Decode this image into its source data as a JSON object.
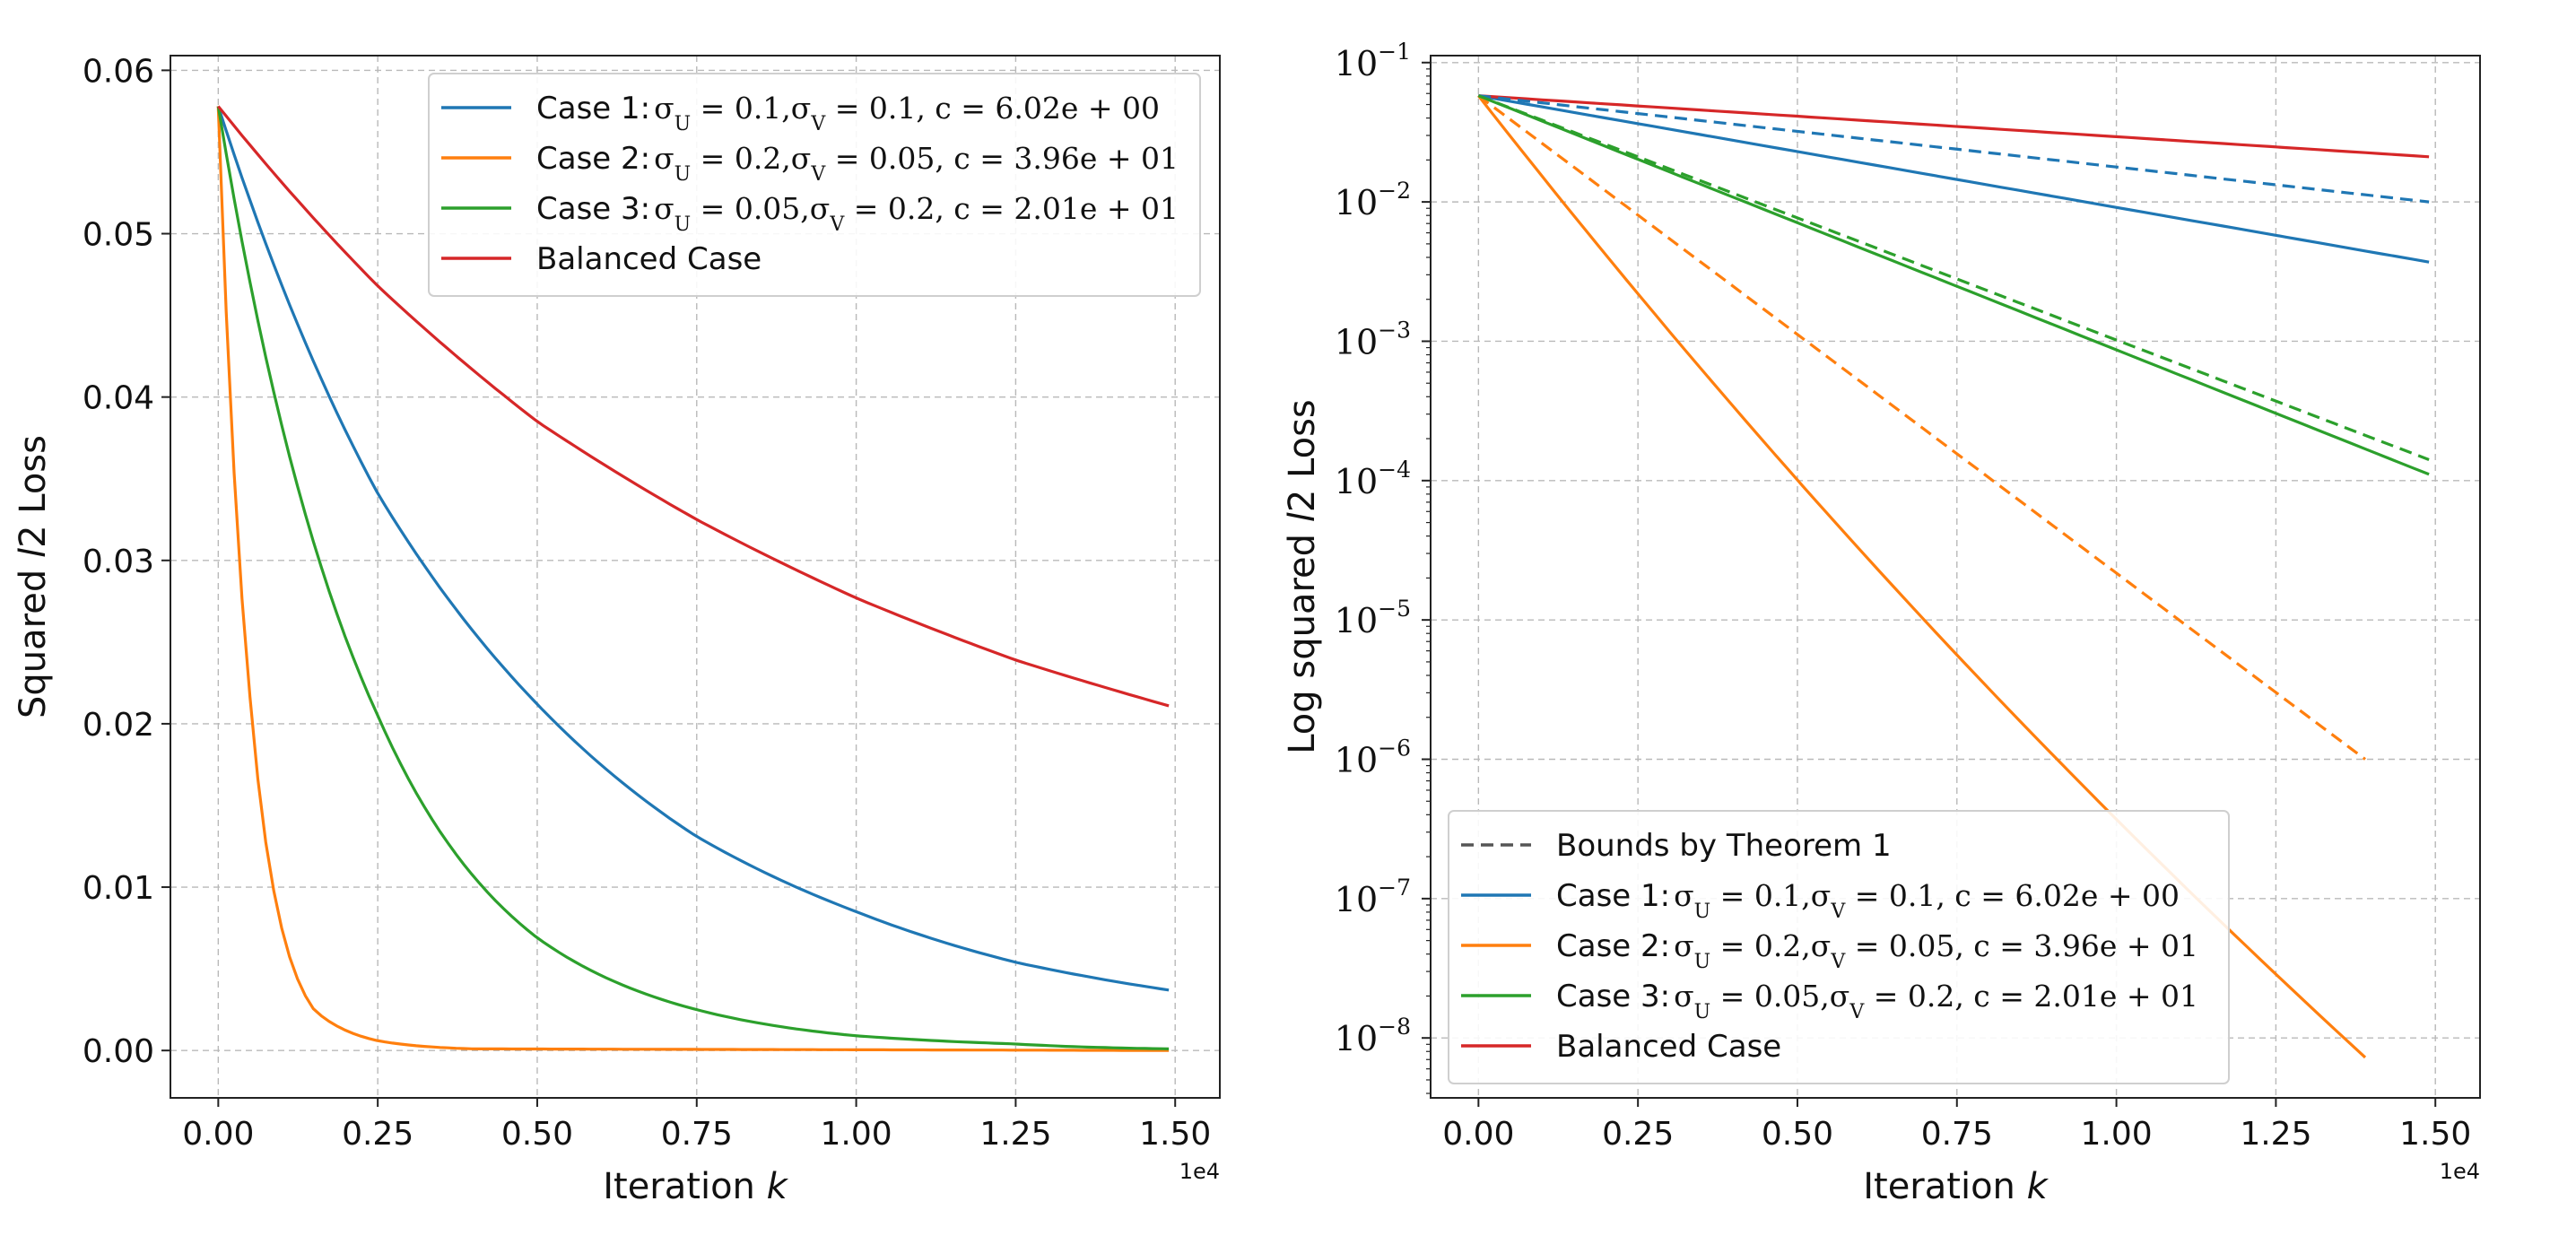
{
  "chart_data": [
    {
      "type": "line",
      "yscale": "linear",
      "xlabel": "Iteration k",
      "ylabel": "Squared l2 Loss",
      "x_multiplier": "1e4",
      "xlim": [
        -0.075,
        1.57
      ],
      "ylim": [
        -0.0029,
        0.0609
      ],
      "xticks": [
        0.0,
        0.25,
        0.5,
        0.75,
        1.0,
        1.25,
        1.5
      ],
      "xtick_labels": [
        "0.00",
        "0.25",
        "0.50",
        "0.75",
        "1.00",
        "1.25",
        "1.50"
      ],
      "yticks": [
        0.0,
        0.01,
        0.02,
        0.03,
        0.04,
        0.05,
        0.06
      ],
      "ytick_labels": [
        "0.00",
        "0.01",
        "0.02",
        "0.03",
        "0.04",
        "0.05",
        "0.06"
      ],
      "grid": true,
      "legend_position": "top-right",
      "series": [
        {
          "name": "Case 1",
          "text": "Case 1: ",
          "math": "σ_U = 0.1,σ_V = 0.1, c = 6.02e + 00",
          "color": "#1f77b4",
          "style": "solid",
          "x_end": 1.49,
          "points": [
            [
              0,
              0.0578
            ],
            [
              0.25,
              0.0341
            ],
            [
              0.5,
              0.0212
            ],
            [
              0.75,
              0.0131
            ],
            [
              1.0,
              0.0085
            ],
            [
              1.25,
              0.0054
            ],
            [
              1.49,
              0.0037
            ]
          ]
        },
        {
          "name": "Case 2",
          "text": "Case 2: ",
          "math": "σ_U = 0.2,σ_V = 0.05, c = 3.96e + 01",
          "color": "#ff7f0e",
          "style": "solid",
          "x_end": 1.49,
          "points": [
            [
              0,
              0.0578
            ],
            [
              0.05,
              0.0215
            ],
            [
              0.1,
              0.0074
            ],
            [
              0.15,
              0.0025
            ],
            [
              0.25,
              0.0006
            ],
            [
              0.4,
              0.0001
            ],
            [
              1.49,
              0.0
            ]
          ]
        },
        {
          "name": "Case 3",
          "text": "Case 3: ",
          "math": "σ_U = 0.05,σ_V = 0.2, c = 2.01e + 01",
          "color": "#2ca02c",
          "style": "solid",
          "x_end": 1.49,
          "points": [
            [
              0,
              0.0578
            ],
            [
              0.25,
              0.0205
            ],
            [
              0.5,
              0.0069
            ],
            [
              0.75,
              0.0025
            ],
            [
              1.0,
              0.0009
            ],
            [
              1.25,
              0.0004
            ],
            [
              1.49,
              0.0001
            ]
          ]
        },
        {
          "name": "Balanced Case",
          "text": "Balanced Case",
          "math": "",
          "color": "#d62728",
          "style": "solid",
          "x_end": 1.49,
          "points": [
            [
              0,
              0.0578
            ],
            [
              0.25,
              0.0468
            ],
            [
              0.5,
              0.0385
            ],
            [
              0.75,
              0.0325
            ],
            [
              1.0,
              0.0277
            ],
            [
              1.25,
              0.0239
            ],
            [
              1.49,
              0.0211
            ]
          ]
        }
      ]
    },
    {
      "type": "line",
      "yscale": "log",
      "xlabel": "Iteration k",
      "ylabel": "Log squared l2 Loss",
      "x_multiplier": "1e4",
      "xlim": [
        -0.075,
        1.57
      ],
      "ylim_log10": [
        -8.43,
        -0.95
      ],
      "xticks": [
        0.0,
        0.25,
        0.5,
        0.75,
        1.0,
        1.25,
        1.5
      ],
      "xtick_labels": [
        "0.00",
        "0.25",
        "0.50",
        "0.75",
        "1.00",
        "1.25",
        "1.50"
      ],
      "ytick_exponents": [
        -1,
        -2,
        -3,
        -4,
        -5,
        -6,
        -7,
        -8
      ],
      "ytick_base": "10",
      "ytick_minus": "−",
      "grid": true,
      "legend_position": "bottom-left",
      "series": [
        {
          "name": "Bounds by Theorem 1",
          "text": "Bounds by Theorem 1",
          "math": "",
          "color": "#555555",
          "style": "dashed",
          "legend_only": true
        },
        {
          "name": "Case 1",
          "text": "Case 1: ",
          "math": "σ_U = 0.1,σ_V = 0.1, c = 6.02e + 00",
          "color": "#1f77b4",
          "style": "solid",
          "x_end": 1.49,
          "log10_start": -1.238,
          "log10_end": -2.432
        },
        {
          "name": "Case 2",
          "text": "Case 2: ",
          "math": "σ_U = 0.2,σ_V = 0.05, c = 3.96e + 01",
          "color": "#ff7f0e",
          "style": "solid",
          "x_end": 1.39,
          "log10_start": -1.238,
          "log10_end": -8.14
        },
        {
          "name": "Case 3",
          "text": "Case 3: ",
          "math": "σ_U = 0.05,σ_V = 0.2, c = 2.01e + 01",
          "color": "#2ca02c",
          "style": "solid",
          "x_end": 1.49,
          "log10_start": -1.238,
          "log10_end": -3.955
        },
        {
          "name": "Balanced Case",
          "text": "Balanced Case",
          "math": "",
          "color": "#d62728",
          "style": "solid",
          "x_end": 1.49,
          "log10_start": -1.238,
          "log10_end": -1.676
        },
        {
          "name": "Case 1 bound",
          "color": "#1f77b4",
          "style": "dashed",
          "x_end": 1.49,
          "log10_start": -1.238,
          "log10_end": -2.0,
          "no_legend": true
        },
        {
          "name": "Case 2 bound",
          "color": "#ff7f0e",
          "style": "dashed",
          "x_end": 1.39,
          "log10_start": -1.238,
          "log10_end": -6.0,
          "no_legend": true
        },
        {
          "name": "Case 3 bound",
          "color": "#2ca02c",
          "style": "dashed",
          "x_end": 1.49,
          "log10_start": -1.238,
          "log10_end": -3.85,
          "no_legend": true
        }
      ]
    }
  ]
}
